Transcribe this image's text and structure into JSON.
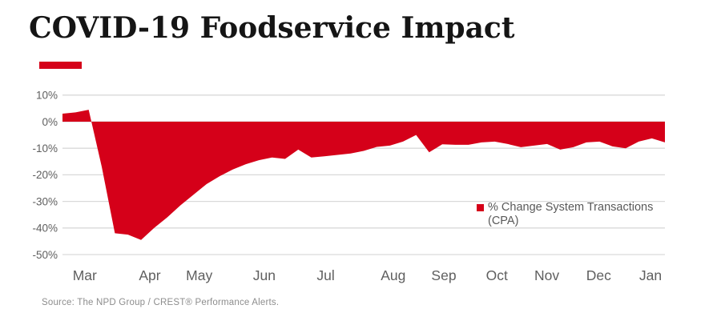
{
  "title": "COVID-19 Foodservice Impact",
  "source": "Source: The NPD Group / CREST® Performance Alerts.",
  "colors": {
    "accent_red": "#d50019",
    "gridline": "#d9d9d9",
    "axis_text": "#5f5f5f",
    "title_text": "#151515",
    "legend_text": "#595959",
    "source_text": "#8d8d8d",
    "background": "#ffffff"
  },
  "legend": {
    "marker": "square",
    "marker_color": "#d50019",
    "label_line1": "% Change System Transactions",
    "label_line2": "(CPA)"
  },
  "chart_data": {
    "type": "area",
    "title": "COVID-19 Foodservice Impact",
    "series_name": "% Change System Transactions (CPA)",
    "x_unit": "week",
    "baseline": 0,
    "ylim": [
      -50,
      10
    ],
    "yticks": [
      10,
      0,
      -10,
      -20,
      -30,
      -40,
      -50
    ],
    "ytick_labels": [
      "10%",
      "0%",
      "-10%",
      "-20%",
      "-30%",
      "-40%",
      "-50%"
    ],
    "grid": "horizontal",
    "legend_position": "inside-right",
    "fill_color": "#d50019",
    "months": [
      {
        "label": "Mar",
        "pos": 0.037
      },
      {
        "label": "Apr",
        "pos": 0.145
      },
      {
        "label": "May",
        "pos": 0.227
      },
      {
        "label": "Jun",
        "pos": 0.335
      },
      {
        "label": "Jul",
        "pos": 0.437
      },
      {
        "label": "Aug",
        "pos": 0.549
      },
      {
        "label": "Sep",
        "pos": 0.633
      },
      {
        "label": "Oct",
        "pos": 0.721
      },
      {
        "label": "Nov",
        "pos": 0.804
      },
      {
        "label": "Dec",
        "pos": 0.89
      },
      {
        "label": "Jan",
        "pos": 0.976
      }
    ],
    "values": [
      3,
      3.5,
      4.5,
      -17,
      -42,
      -42.5,
      -44.5,
      -40,
      -36,
      -31.5,
      -27.5,
      -23.5,
      -20.5,
      -18,
      -16,
      -14.5,
      -13.5,
      -14,
      -10.5,
      -13.5,
      -13,
      -12.5,
      -12,
      -11,
      -9.5,
      -9,
      -7.5,
      -5,
      -11.5,
      -8.5,
      -8.7,
      -8.7,
      -7.8,
      -7.5,
      -8.4,
      -9.6,
      -9,
      -8.4,
      -10.5,
      -9.6,
      -7.8,
      -7.5,
      -9.3,
      -10,
      -7.5,
      -6.3,
      -7.8
    ]
  }
}
